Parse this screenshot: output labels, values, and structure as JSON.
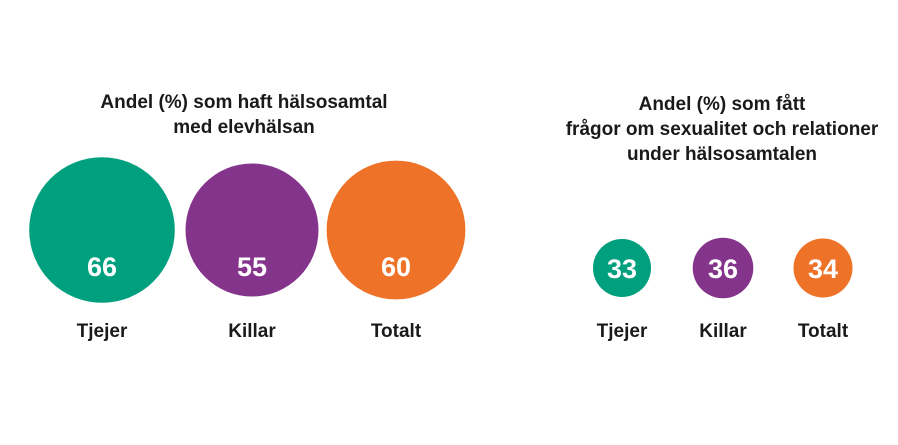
{
  "chart_data": [
    {
      "type": "bubble",
      "title_lines": [
        "Andel (%) som haft hälsosamtal",
        "med elevhälsan"
      ],
      "categories": [
        "Tjejer",
        "Killar",
        "Totalt"
      ],
      "values": [
        66,
        55,
        60
      ],
      "unit": "%"
    },
    {
      "type": "bubble",
      "title_lines": [
        "Andel (%) som fått",
        "frågor om sexualitet och relationer",
        "under hälsosamtalen"
      ],
      "categories": [
        "Tjejer",
        "Killar",
        "Totalt"
      ],
      "values": [
        33,
        36,
        34
      ],
      "unit": "%"
    }
  ],
  "colors": [
    "#00a07f",
    "#84358b",
    "#ee7227"
  ]
}
